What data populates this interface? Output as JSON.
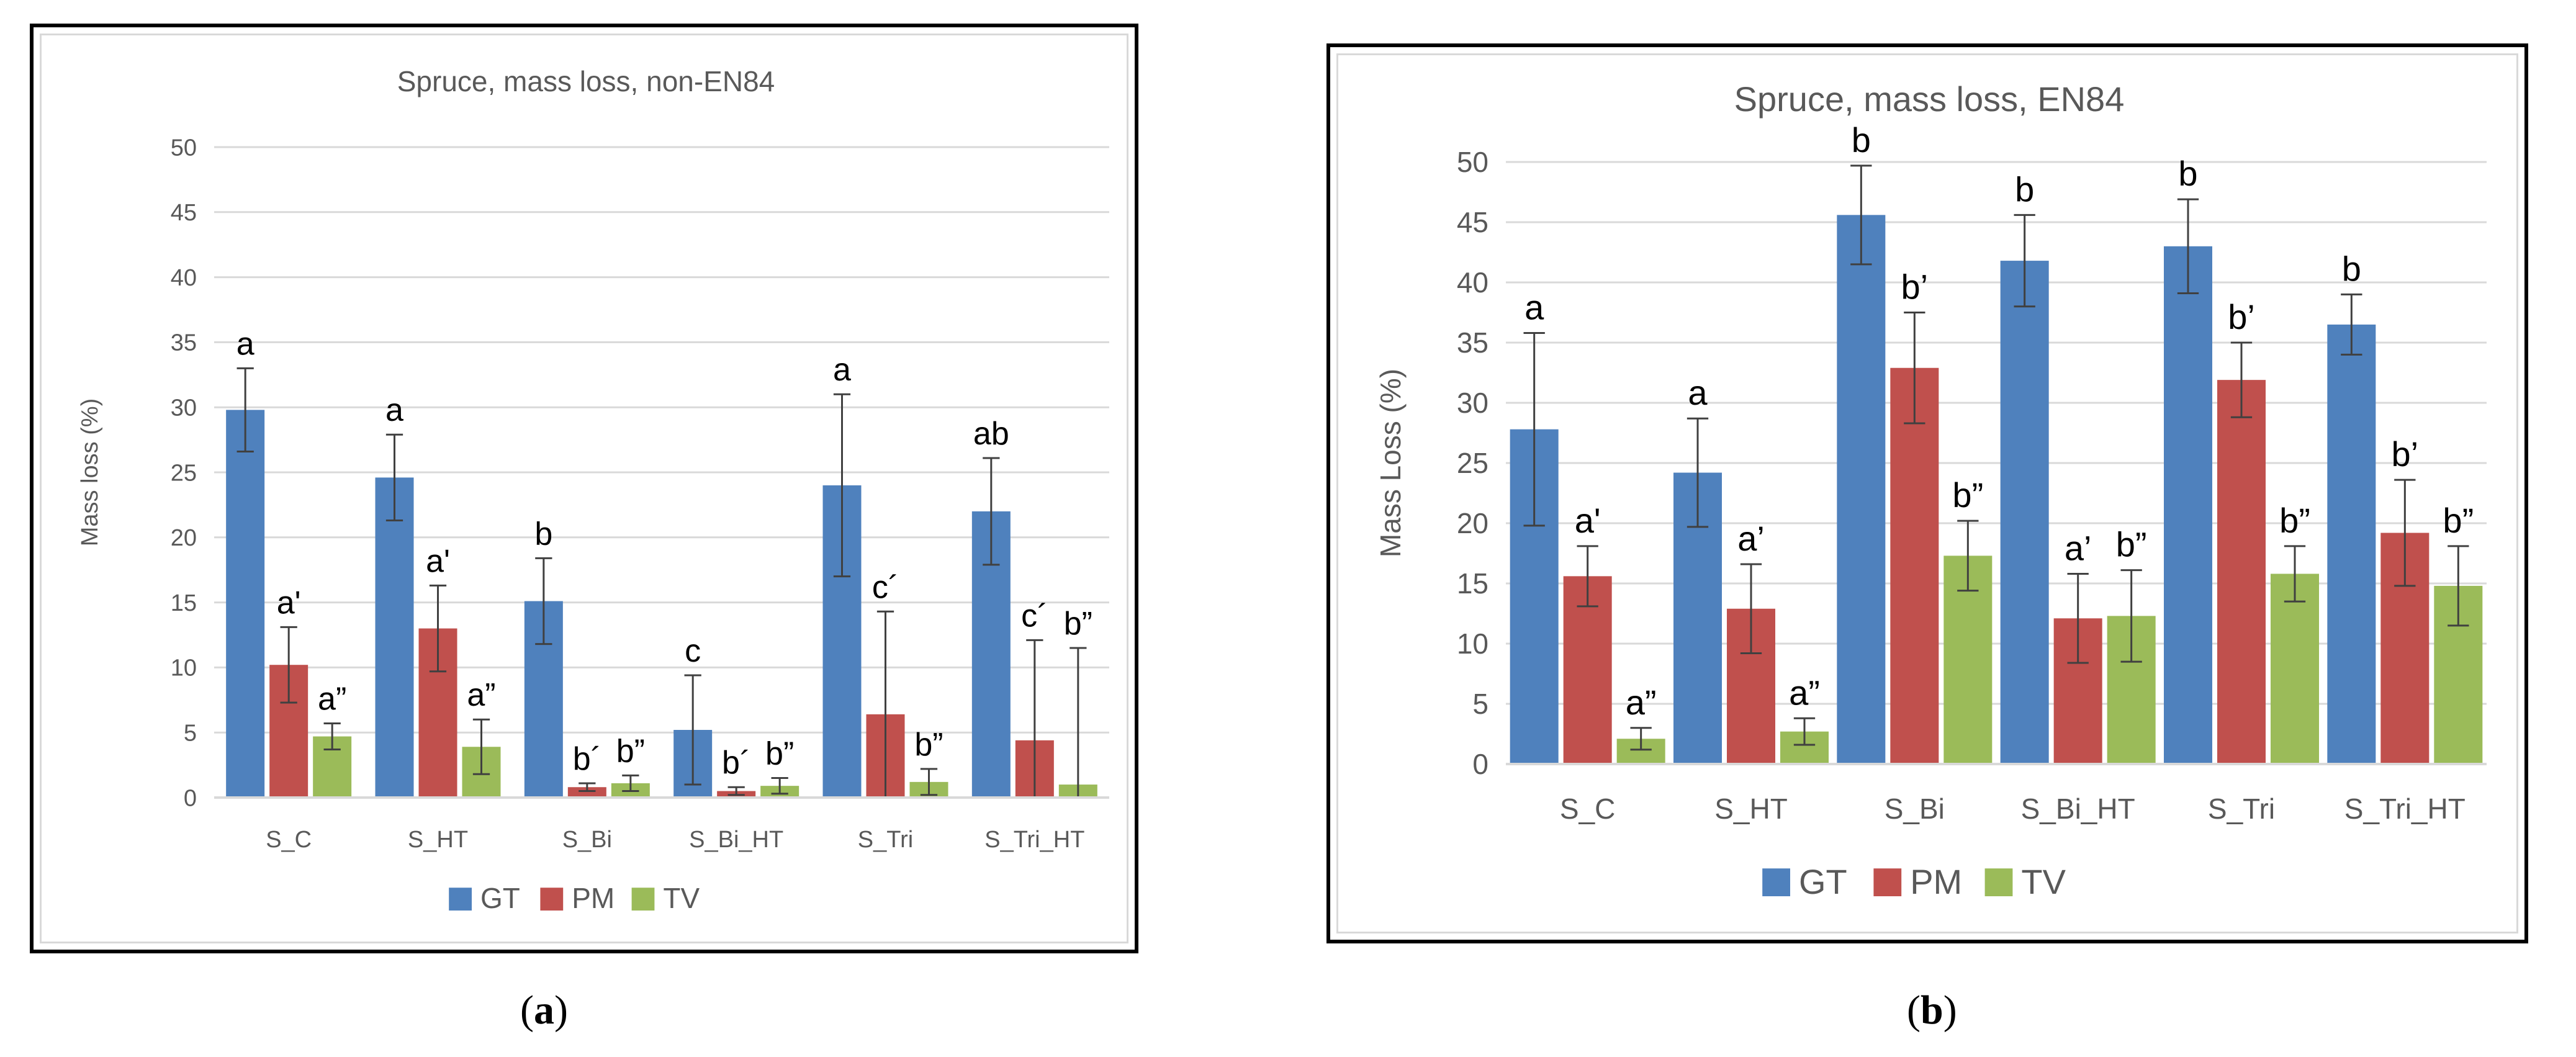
{
  "colors": {
    "GT": "#4f81bd",
    "PM": "#c0504d",
    "TV": "#9bbb59",
    "grid": "#d9d9d9",
    "title": "#595959",
    "text": "#595959",
    "annotation": "#000000"
  },
  "chart_data": [
    {
      "panel": "a",
      "type": "bar",
      "title": "Spruce, mass loss, non-EN84",
      "ylabel": "Mass loss (%)",
      "xlabel": "",
      "ylim": [
        0,
        50
      ],
      "yticks": [
        "0",
        "5",
        "10",
        "15",
        "20",
        "25",
        "30",
        "35",
        "40",
        "45",
        "50"
      ],
      "legend_position": "bottom",
      "categories": [
        "S_C",
        "S_HT",
        "S_Bi",
        "S_Bi_HT",
        "S_Tri",
        "S_Tri_HT"
      ],
      "series": [
        {
          "name": "GT",
          "values": [
            29.8,
            24.6,
            15.1,
            5.2,
            24.0,
            22.0
          ],
          "errors": [
            3.2,
            3.3,
            3.3,
            4.2,
            7.0,
            4.1
          ],
          "labels": [
            "a",
            "a",
            "b",
            "c",
            "a",
            "ab"
          ]
        },
        {
          "name": "PM",
          "values": [
            10.2,
            13.0,
            0.8,
            0.5,
            6.4,
            4.4
          ],
          "errors": [
            2.9,
            3.3,
            0.3,
            0.3,
            7.9,
            7.7
          ],
          "labels": [
            "a'",
            "a'",
            "b´",
            "b´",
            "c´",
            "c´"
          ]
        },
        {
          "name": "TV",
          "values": [
            4.7,
            3.9,
            1.1,
            0.9,
            1.2,
            1.0
          ],
          "errors": [
            1.0,
            2.1,
            0.6,
            0.6,
            1.0,
            10.5
          ],
          "labels": [
            "a”",
            "a”",
            "b”",
            "b”",
            "b”",
            "b”"
          ]
        }
      ]
    },
    {
      "panel": "b",
      "type": "bar",
      "title": "Spruce, mass loss, EN84",
      "ylabel": "Mass Loss (%)",
      "xlabel": "",
      "ylim": [
        0,
        50
      ],
      "yticks": [
        "0",
        "5",
        "10",
        "15",
        "20",
        "25",
        "30",
        "35",
        "40",
        "45",
        "50"
      ],
      "legend_position": "bottom",
      "categories": [
        "S_C",
        "S_HT",
        "S_Bi",
        "S_Bi_HT",
        "S_Tri",
        "S_Tri_HT"
      ],
      "series": [
        {
          "name": "GT",
          "values": [
            27.8,
            24.2,
            45.6,
            41.8,
            43.0,
            36.5
          ],
          "errors": [
            8.0,
            4.5,
            4.1,
            3.8,
            3.9,
            2.5
          ],
          "labels": [
            "a",
            "a",
            "b",
            "b",
            "b",
            "b"
          ]
        },
        {
          "name": "PM",
          "values": [
            15.6,
            12.9,
            32.9,
            12.1,
            31.9,
            19.2
          ],
          "errors": [
            2.5,
            3.7,
            4.6,
            3.7,
            3.1,
            4.4
          ],
          "labels": [
            "a'",
            "a’",
            "b’",
            "a’",
            "b’",
            "b’"
          ]
        },
        {
          "name": "TV",
          "values": [
            2.1,
            2.7,
            17.3,
            12.3,
            15.8,
            14.8
          ],
          "errors": [
            0.9,
            1.1,
            2.9,
            3.8,
            2.3,
            3.3
          ],
          "labels": [
            "a”",
            "a”",
            "b”",
            "b”",
            "b”",
            "b”"
          ]
        }
      ]
    }
  ],
  "captions": [
    {
      "open": "(",
      "letter": "a",
      "close": ")"
    },
    {
      "open": "(",
      "letter": "b",
      "close": ")"
    }
  ]
}
